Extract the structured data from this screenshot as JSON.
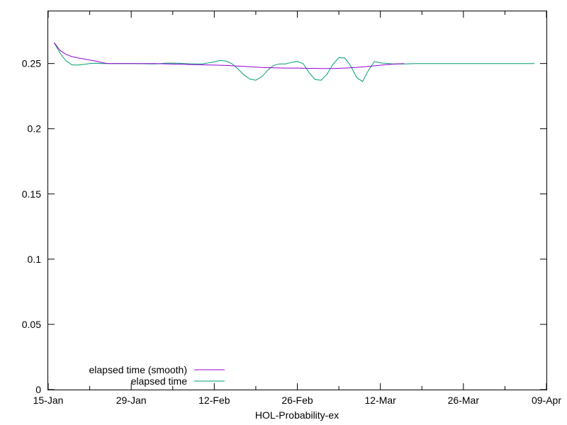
{
  "chart_data": {
    "type": "line",
    "title": "",
    "xlabel": "HOL-Probability-ex",
    "ylabel": "",
    "x_ticks": [
      "15-Jan",
      "29-Jan",
      "12-Feb",
      "26-Feb",
      "12-Mar",
      "26-Mar",
      "09-Apr"
    ],
    "y_ticks": [
      "0",
      "0.05",
      "0.1",
      "0.15",
      "0.2",
      "0.25"
    ],
    "xlim": [
      0,
      84
    ],
    "ylim": [
      0,
      0.29
    ],
    "legend_position": "bottom-left",
    "series": [
      {
        "name": "elapsed time (smooth)",
        "color": "#9400d3",
        "x": [
          1,
          2,
          3,
          4,
          5,
          6,
          7,
          8,
          9,
          10,
          12,
          14,
          16,
          18,
          20,
          22,
          24,
          26,
          28,
          30,
          32,
          34,
          36,
          38,
          40,
          42,
          44,
          46,
          48,
          50,
          52,
          54,
          56,
          58,
          60
        ],
        "y": [
          0.266,
          0.26,
          0.257,
          0.2553,
          0.2543,
          0.2535,
          0.2527,
          0.2518,
          0.2508,
          0.25,
          0.25,
          0.25,
          0.25,
          0.25,
          0.2497,
          0.2495,
          0.2492,
          0.249,
          0.2488,
          0.2485,
          0.248,
          0.2475,
          0.247,
          0.2467,
          0.2465,
          0.2465,
          0.2463,
          0.2462,
          0.2462,
          0.2465,
          0.247,
          0.2478,
          0.2487,
          0.2495,
          0.25
        ]
      },
      {
        "name": "elapsed time",
        "color": "#009e73",
        "x": [
          1,
          2,
          3,
          4,
          5,
          6,
          7,
          8,
          9,
          10,
          12,
          14,
          16,
          18,
          20,
          22,
          24,
          26,
          28,
          29,
          30,
          31,
          32,
          33,
          34,
          35,
          36,
          37,
          38,
          39,
          40,
          41,
          42,
          43,
          44,
          45,
          46,
          47,
          48,
          49,
          50,
          51,
          52,
          53,
          54,
          55,
          56,
          58,
          60,
          62,
          64,
          66,
          68,
          70,
          72,
          74,
          76,
          78,
          80,
          82
        ],
        "y": [
          0.266,
          0.258,
          0.252,
          0.249,
          0.2488,
          0.2493,
          0.25,
          0.2502,
          0.25,
          0.25,
          0.25,
          0.25,
          0.2498,
          0.2497,
          0.2503,
          0.2502,
          0.2497,
          0.2497,
          0.2512,
          0.2523,
          0.2518,
          0.2498,
          0.2458,
          0.2413,
          0.2381,
          0.2372,
          0.2398,
          0.2448,
          0.2485,
          0.2497,
          0.2497,
          0.2508,
          0.2516,
          0.2498,
          0.2429,
          0.2377,
          0.2372,
          0.2418,
          0.2493,
          0.2545,
          0.2542,
          0.2482,
          0.2393,
          0.2362,
          0.2448,
          0.2515,
          0.2505,
          0.2497,
          0.2497,
          0.25,
          0.25,
          0.25,
          0.25,
          0.25,
          0.25,
          0.25,
          0.25,
          0.25,
          0.25,
          0.25
        ]
      }
    ]
  }
}
